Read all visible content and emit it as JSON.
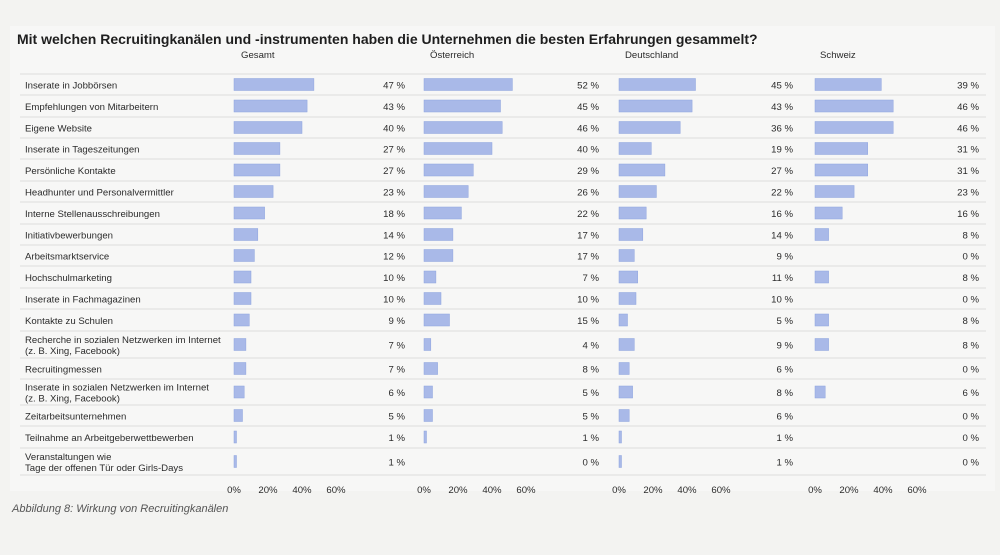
{
  "title": "Mit welchen Recruitingkanälen und -instrumenten haben die Unternehmen die besten Erfahrungen gesammelt?",
  "caption": "Abbildung 8: Wirkung von Recruitingkanälen",
  "colors": {
    "bar": "#a9b9e8",
    "bar_stroke": "#8ea3de",
    "row_line": "#dcdcdc",
    "text": "#2b2b2b"
  },
  "chart_data": {
    "type": "bar",
    "orientation": "horizontal",
    "value_suffix": " %",
    "xlim": [
      0,
      60
    ],
    "xticks": [
      "0%",
      "20%",
      "40%",
      "60%"
    ],
    "categories": [
      [
        "Inserate in Jobbörsen"
      ],
      [
        "Empfehlungen von Mitarbeitern"
      ],
      [
        "Eigene Website"
      ],
      [
        "Inserate in Tageszeitungen"
      ],
      [
        "Persönliche Kontakte"
      ],
      [
        "Headhunter und Personalvermittler"
      ],
      [
        "Interne Stellenausschreibungen"
      ],
      [
        "Initiativbewerbungen"
      ],
      [
        "Arbeitsmarktservice"
      ],
      [
        "Hochschulmarketing"
      ],
      [
        "Inserate in Fachmagazinen"
      ],
      [
        "Kontakte zu Schulen"
      ],
      [
        "Recherche in sozialen Netzwerken im Internet",
        "(z. B. Xing, Facebook)"
      ],
      [
        "Recruitingmessen"
      ],
      [
        "Inserate in sozialen Netzwerken im Internet",
        "(z. B. Xing, Facebook)"
      ],
      [
        "Zeitarbeitsunternehmen"
      ],
      [
        "Teilnahme an Arbeitgeberwettbewerben"
      ],
      [
        "Veranstaltungen wie",
        "Tage der offenen Tür oder Girls-Days"
      ]
    ],
    "series": [
      {
        "name": "Gesamt",
        "values": [
          47,
          43,
          40,
          27,
          27,
          23,
          18,
          14,
          12,
          10,
          10,
          9,
          7,
          7,
          6,
          5,
          1,
          1
        ]
      },
      {
        "name": "Österreich",
        "values": [
          52,
          45,
          46,
          40,
          29,
          26,
          22,
          17,
          17,
          7,
          10,
          15,
          4,
          8,
          5,
          5,
          1,
          0
        ]
      },
      {
        "name": "Deutschland",
        "values": [
          45,
          43,
          36,
          19,
          27,
          22,
          16,
          14,
          9,
          11,
          10,
          5,
          9,
          6,
          8,
          6,
          1,
          1
        ]
      },
      {
        "name": "Schweiz",
        "values": [
          39,
          46,
          46,
          31,
          31,
          23,
          16,
          8,
          0,
          8,
          0,
          8,
          8,
          0,
          6,
          0,
          0,
          0
        ]
      }
    ]
  }
}
